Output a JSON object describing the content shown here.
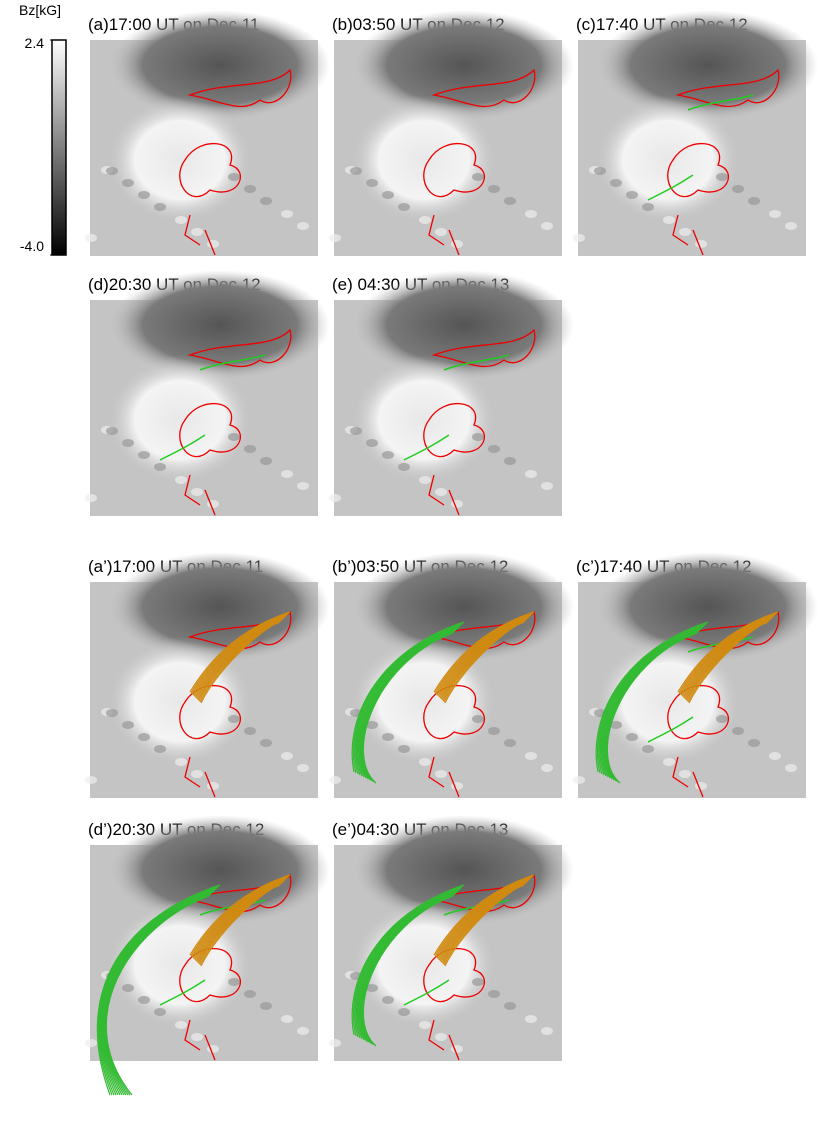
{
  "colorbar": {
    "label": "Bz[kG]",
    "range": [
      -4,
      2.4
    ],
    "ticks": [
      2.4,
      {
        "value": -4,
        "label": "-4.0"
      }
    ]
  },
  "panels": [
    {
      "title": "(a)17:00 UT on Dec.11"
    },
    {
      "title": "(b)03:50 UT on Dec.12"
    },
    {
      "title": "(c)17:40 UT on Dec.12"
    },
    {
      "title": "(d)20:30 UT on Dec.12"
    },
    {
      "title": "(e) 04:30 UT on Dec.13"
    },
    {
      "title": "(a’)17:00 UT on Dec.11"
    },
    {
      "title": "(b’)03:50 UT on Dec.12"
    },
    {
      "title": "(c’)17:40 UT on Dec.12"
    },
    {
      "title": "(d’)20:30 UT on Dec.12"
    },
    {
      "title": "(e’)04:30 UT on Dec.13"
    }
  ]
}
